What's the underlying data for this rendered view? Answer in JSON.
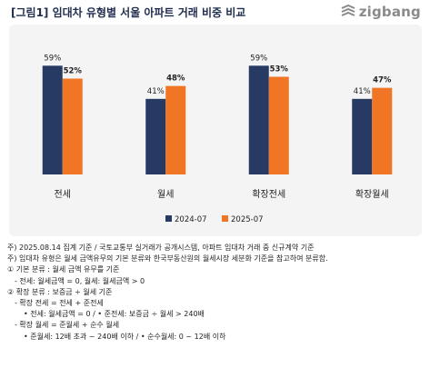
{
  "header": {
    "title": "[그림1] 임대차 유형별 서울 아파트 거래 비중 비교",
    "logo_text": "zigbang"
  },
  "chart_data": {
    "type": "bar",
    "categories": [
      "전세",
      "월세",
      "확장전세",
      "확장월세"
    ],
    "series": [
      {
        "name": "2024-07",
        "values": [
          59,
          41,
          59,
          41
        ],
        "color": "#263a63"
      },
      {
        "name": "2025-07",
        "values": [
          52,
          48,
          53,
          47
        ],
        "color": "#f07524"
      }
    ],
    "value_labels": [
      [
        "59%",
        "41%",
        "59%",
        "41%"
      ],
      [
        "52%",
        "48%",
        "53%",
        "47%"
      ]
    ],
    "ylim": [
      0,
      70
    ],
    "legend_position": "bottom-right",
    "grid": false
  },
  "notes": [
    "주) 2025.08.14 집계 기준 / 국토교통부 실거래가 공개시스템, 아파트 임대차 거래 중 신규계약 기준",
    "주) 임대차 유형은 월세 금액유무의 기본 분류와 한국부동산원의 월세시장 세분화 기준을 참고하여 분류함.",
    "① 기본 분류 : 월세 금액 유무를 기준",
    "- 전세: 월세금액 = 0, 월세: 월세금액 > 0",
    "② 확장 분류 : 보증금 ÷ 월세 기준",
    "- 확장 전세 = 전세 + 준전세",
    "• 전세: 월세금액 = 0 / • 준전세: 보증금 ÷ 월세 > 240배",
    "- 확장 월세 = 준월세 + 순수 월세",
    "• 준월세: 12배 초과 ~ 240배 이하 / • 순수월세: 0 ~ 12배 이하"
  ]
}
